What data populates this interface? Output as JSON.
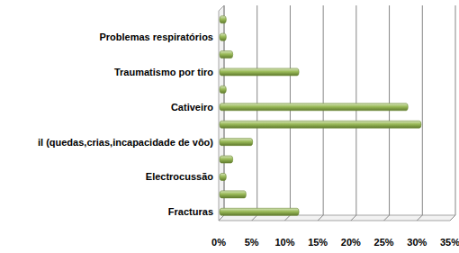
{
  "chart_data": {
    "type": "bar",
    "orientation": "horizontal",
    "categories": [
      null,
      "Problemas respiratórios",
      null,
      "Traumatismo por tiro",
      null,
      "Cativeiro",
      null,
      "il (quedas,crias,incapacidade de vôo)",
      null,
      "Electrocussão",
      null,
      "Fracturas"
    ],
    "values": [
      1,
      1,
      2,
      12,
      1,
      28.5,
      30.5,
      5,
      2,
      1,
      4,
      12
    ],
    "color": "#9bbb59",
    "xlim": [
      0,
      35
    ],
    "xticks": [
      {
        "value": 0,
        "label": "0%"
      },
      {
        "value": 5,
        "label": "5%"
      },
      {
        "value": 10,
        "label": "10%"
      },
      {
        "value": 15,
        "label": "15%"
      },
      {
        "value": 20,
        "label": "20%"
      },
      {
        "value": 25,
        "label": "25%"
      },
      {
        "value": 30,
        "label": "30%"
      },
      {
        "value": 35,
        "label": "35%"
      }
    ],
    "grid": true
  }
}
